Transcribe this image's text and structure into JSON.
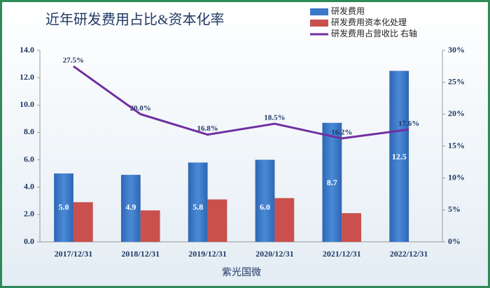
{
  "chart_data": {
    "type": "bar",
    "title": "近年研发费用占比&资本化率",
    "x_label": "紫光国微",
    "categories": [
      "2017/12/31",
      "2018/12/31",
      "2019/12/31",
      "2020/12/31",
      "2021/12/31",
      "2022/12/31"
    ],
    "series": [
      {
        "name": "研发费用",
        "color": "#3a78c9",
        "values": [
          5.0,
          4.9,
          5.8,
          6.0,
          8.7,
          12.5
        ],
        "value_labels": [
          "5.0",
          "4.9",
          "5.8",
          "6.0",
          "8.7",
          "12.5"
        ]
      },
      {
        "name": "研发费用资本化处理",
        "color": "#c9504c",
        "values": [
          2.9,
          2.3,
          3.1,
          3.2,
          2.1,
          null
        ]
      },
      {
        "name": "研发费用占营收比 右轴",
        "color": "#7030a0",
        "type": "line",
        "axis": "y2",
        "values": [
          27.5,
          20.0,
          16.8,
          18.5,
          16.2,
          17.6
        ],
        "value_labels": [
          "27.5%",
          "20.0%",
          "16.8%",
          "18.5%",
          "16.2%",
          "17.6%"
        ]
      }
    ],
    "ylim": [
      0,
      14
    ],
    "yticks": [
      {
        "value": 0,
        "label": "0.0"
      },
      {
        "value": 2,
        "label": "2.0"
      },
      {
        "value": 4,
        "label": "4.0"
      },
      {
        "value": 6,
        "label": "6.0"
      },
      {
        "value": 8,
        "label": "8.0"
      },
      {
        "value": 10,
        "label": "10.0"
      },
      {
        "value": 12,
        "label": "12.0"
      },
      {
        "value": 14,
        "label": "14.0"
      }
    ],
    "y2lim": [
      0,
      30
    ],
    "y2ticks": [
      {
        "value": 0,
        "label": "0%"
      },
      {
        "value": 5,
        "label": "5%"
      },
      {
        "value": 10,
        "label": "10%"
      },
      {
        "value": 15,
        "label": "15%"
      },
      {
        "value": 20,
        "label": "20%"
      },
      {
        "value": 25,
        "label": "25%"
      },
      {
        "value": 30,
        "label": "30%"
      }
    ],
    "grid": false,
    "legend": "top-right"
  }
}
